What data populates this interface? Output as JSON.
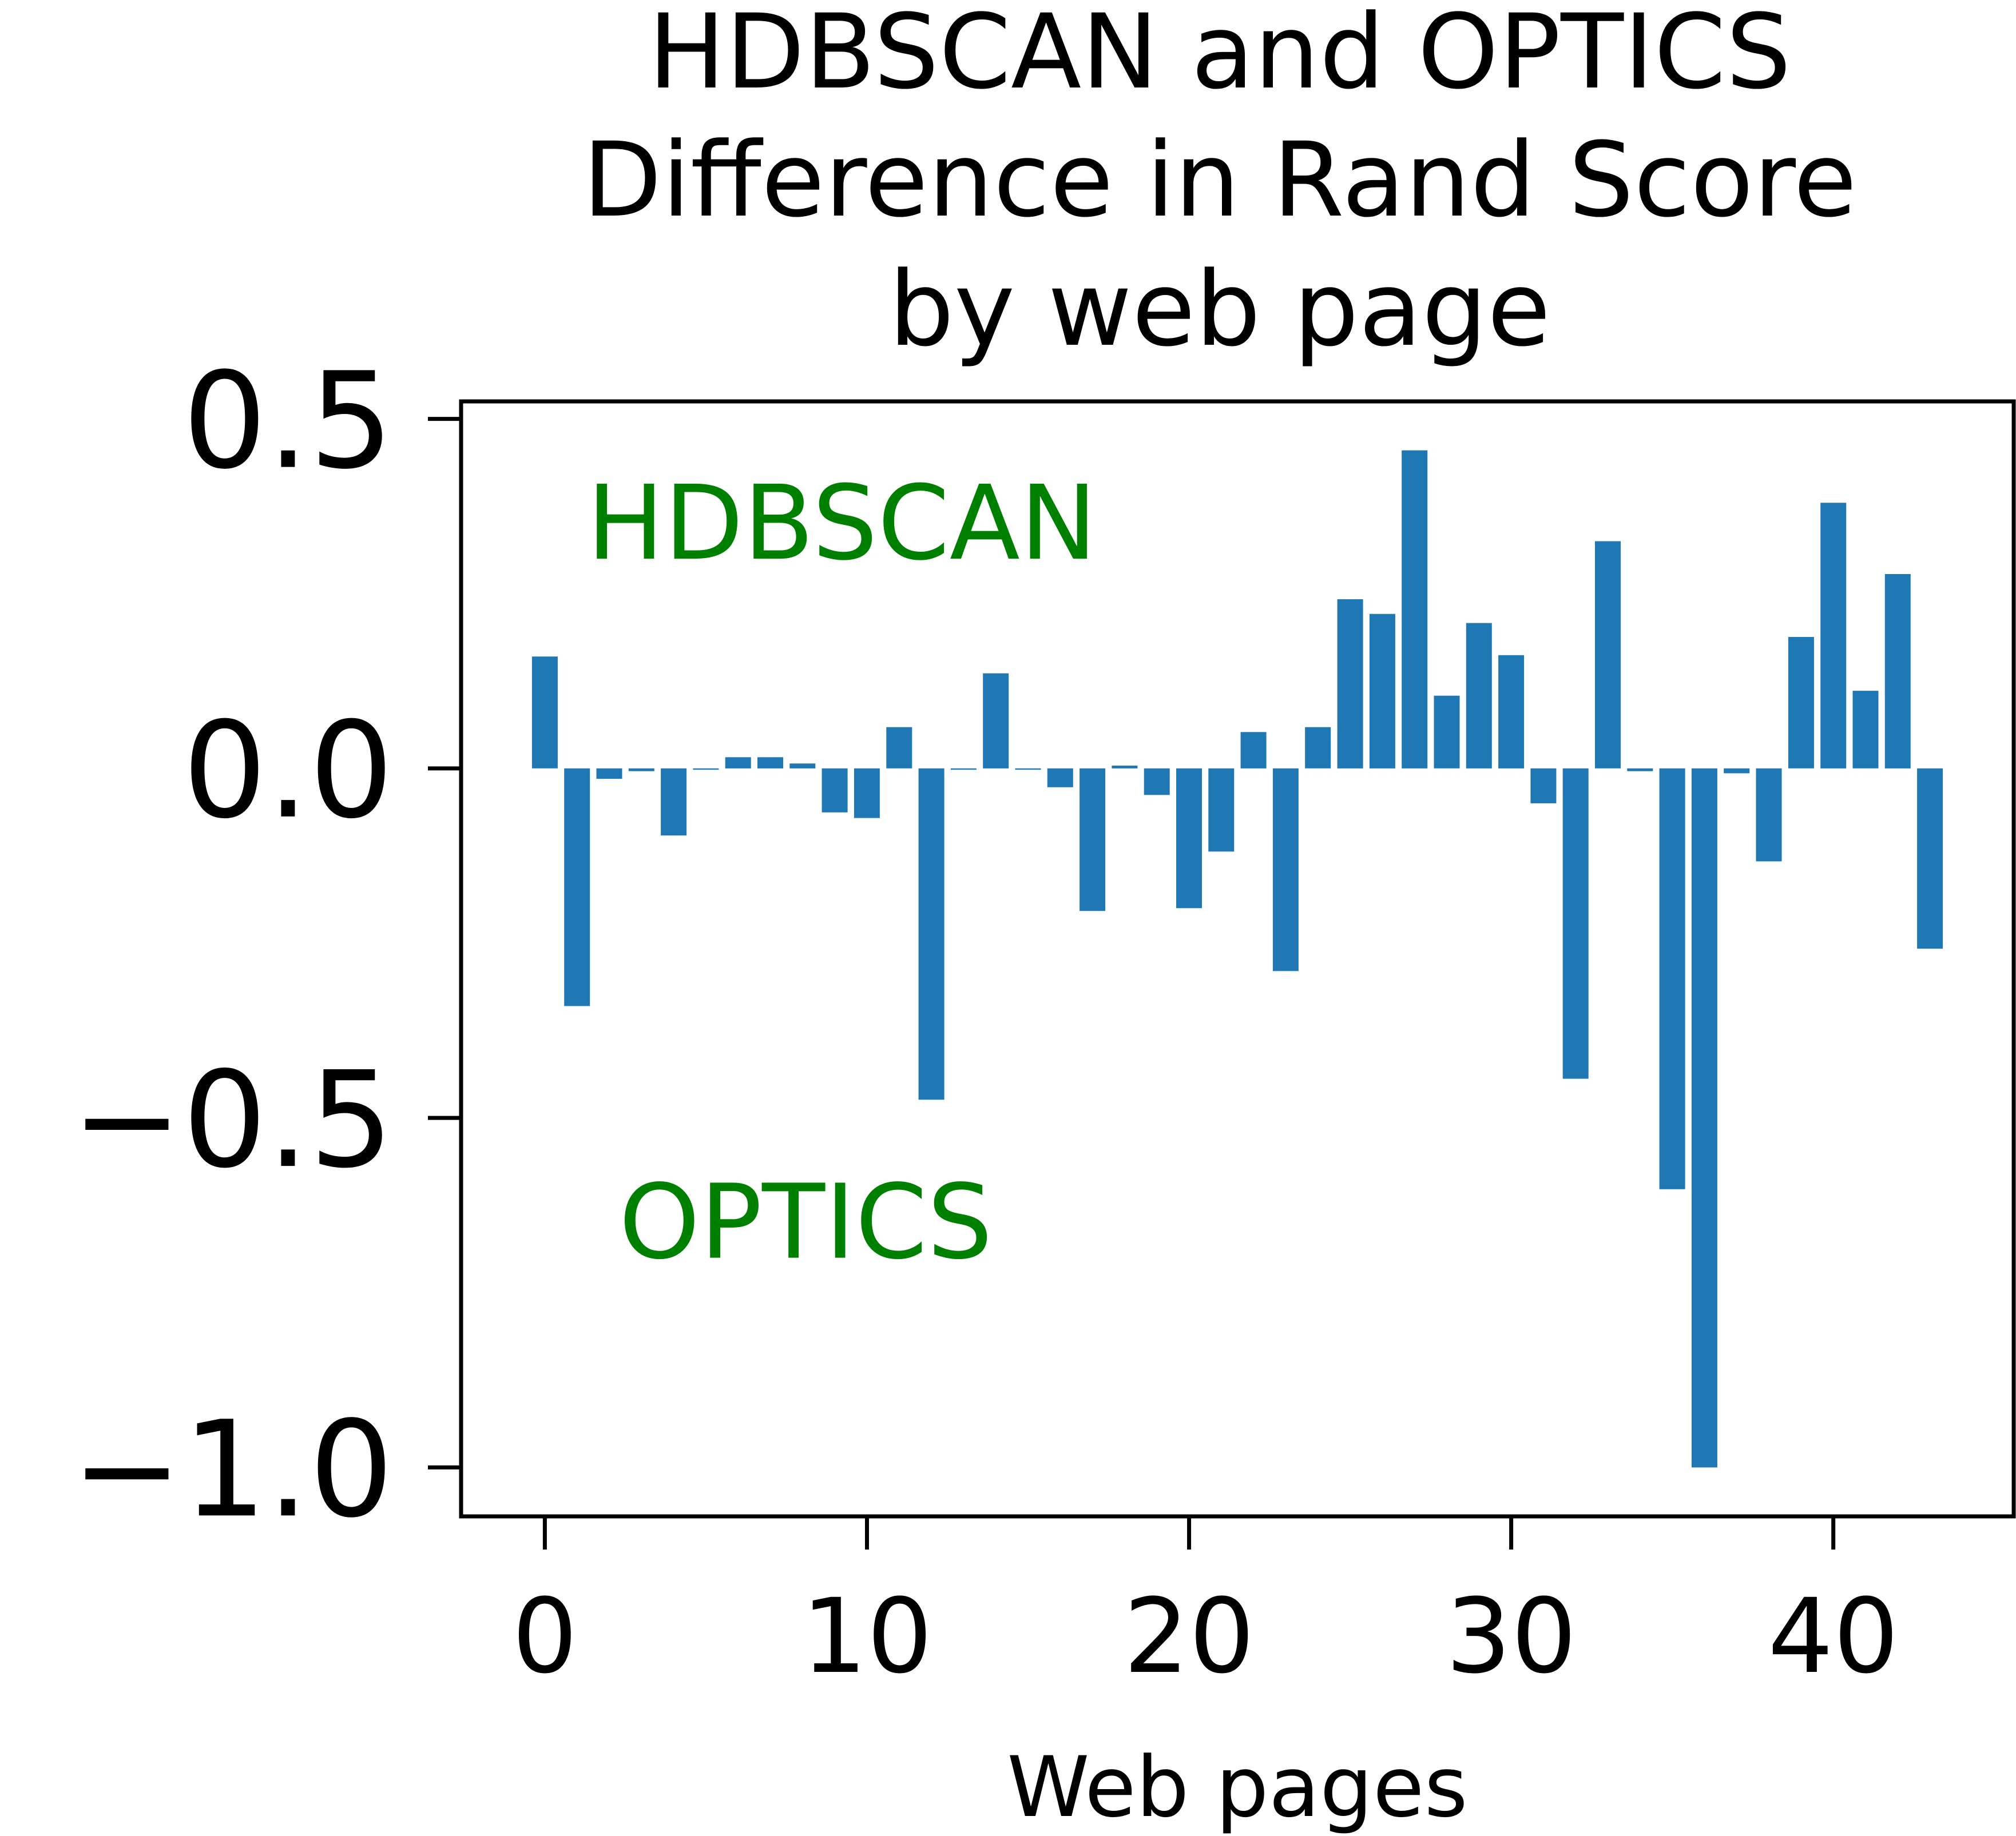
{
  "chart_data": {
    "type": "bar",
    "title": [
      "HDBSCAN and OPTICS",
      "Difference in Rand Score",
      "by web page"
    ],
    "xlabel": "Web pages",
    "ylabel": "",
    "xlim": [
      -2.6,
      45.6
    ],
    "ylim": [
      -1.07,
      0.525
    ],
    "xticks": [
      0,
      10,
      20,
      30,
      40
    ],
    "xtick_labels": [
      "0",
      "10",
      "20",
      "30",
      "40"
    ],
    "yticks": [
      0.5,
      0.0,
      -0.5,
      -1.0
    ],
    "ytick_labels": [
      "0.5",
      "0.0",
      "−0.5",
      "−1.0"
    ],
    "grid": false,
    "bar_color": "#1f77b4",
    "annotation_color": "#008000",
    "annotations": [
      {
        "text": "HDBSCAN",
        "x": 1.3,
        "y": 0.3
      },
      {
        "text": "OPTICS",
        "x": 2.3,
        "y": -0.7
      }
    ],
    "x": [
      0,
      1,
      2,
      3,
      4,
      5,
      6,
      7,
      8,
      9,
      10,
      11,
      12,
      13,
      14,
      15,
      16,
      17,
      18,
      19,
      20,
      21,
      22,
      23,
      24,
      25,
      26,
      27,
      28,
      29,
      30,
      31,
      32,
      33,
      34,
      35,
      36,
      37,
      38,
      39,
      40,
      41,
      42,
      43
    ],
    "values": [
      0.16,
      -0.34,
      -0.015,
      -0.004,
      -0.096,
      -0.002,
      0.016,
      0.016,
      0.007,
      -0.063,
      -0.071,
      0.059,
      -0.474,
      -0.002,
      0.136,
      -0.002,
      -0.027,
      -0.204,
      0.004,
      -0.038,
      -0.2,
      -0.119,
      0.052,
      -0.29,
      0.059,
      0.242,
      0.221,
      0.455,
      0.104,
      0.208,
      0.162,
      -0.05,
      -0.444,
      0.325,
      -0.004,
      -0.602,
      -1.0,
      -0.007,
      -0.133,
      0.188,
      0.38,
      0.111,
      0.278,
      -0.258
    ]
  }
}
